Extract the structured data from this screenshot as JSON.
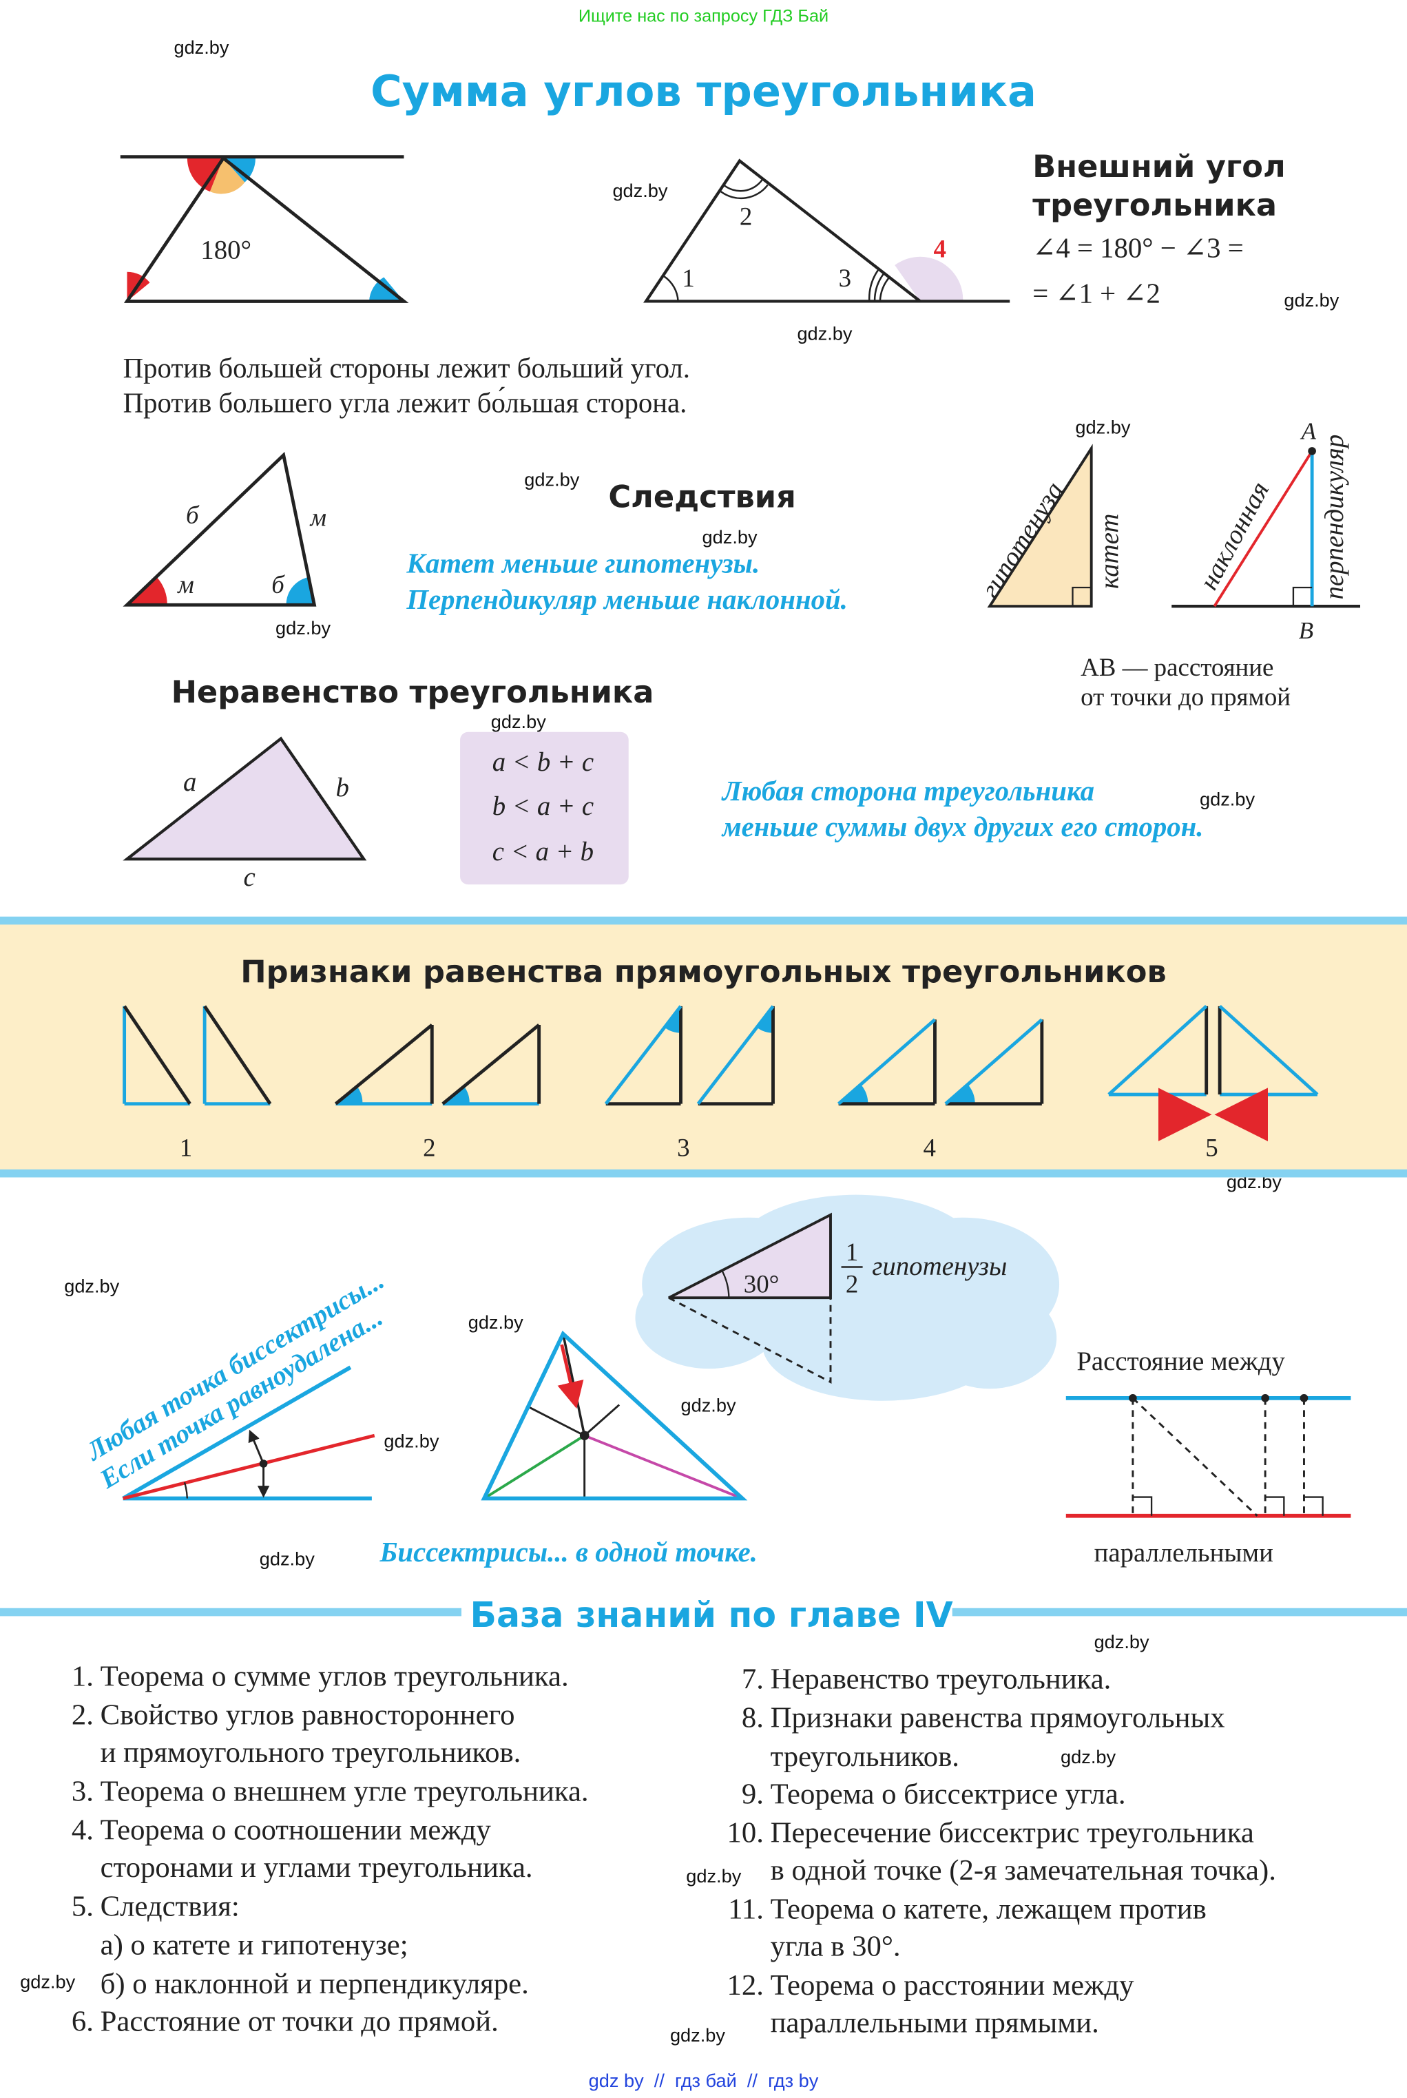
{
  "search_banner": "Ищите нас по запросу ГДЗ Бай",
  "watermark": "gdz.by",
  "footer": "gdz by  //  гдз бай  //  гдз by",
  "colors": {
    "accent_blue": "#1aa6e0",
    "red": "#e3262c",
    "band": "#fdeec8",
    "lilac": "#e8dcef",
    "cloud": "#d3eaf9"
  },
  "sum": {
    "title": "Сумма углов треугольника",
    "angle_180": "180°",
    "labels": {
      "a1": "1",
      "a2": "2",
      "a3": "3",
      "a4": "4"
    },
    "exterior_title_1": "Внешний угол",
    "exterior_title_2": "треугольника",
    "formula_1": "∠4 = 180° − ∠3 =",
    "formula_2": "= ∠1 + ∠2",
    "statement_1": "Против большей стороны лежит больший угол.",
    "statement_2": "Против большего угла лежит бо́льшая сторона."
  },
  "corollaries": {
    "title": "Следствия",
    "tri_labels": {
      "side_left": "б",
      "side_right": "м",
      "angle_left": "м",
      "angle_right": "б"
    },
    "line_1": "Катет меньше гипотенузы.",
    "line_2": "Перпендикуляр меньше наклонной.",
    "hypotenuse": "гипотенуза",
    "leg": "катет",
    "oblique": "наклонная",
    "perpendicular": "перпендикуляр",
    "point_a": "A",
    "point_b": "B",
    "distance_1": "AB — расстояние",
    "distance_2": "от точки до прямой"
  },
  "inequality": {
    "title": "Неравенство треугольника",
    "side_a": "a",
    "side_b": "b",
    "side_c": "c",
    "formulas": [
      "a < b + c",
      "b < a + c",
      "c < a + b"
    ],
    "rule_1": "Любая сторона треугольника",
    "rule_2": "меньше суммы двух других его сторон."
  },
  "right_triangles": {
    "title": "Признаки равенства прямоугольных треугольников",
    "numbers": [
      "1",
      "2",
      "3",
      "4",
      "5"
    ]
  },
  "thirty": {
    "angle": "30°",
    "num": "1",
    "den": "2",
    "text": "гипотенузы"
  },
  "bisector": {
    "line_1": "Любая точка биссектрисы...",
    "line_2": "Если точка равноудалена...",
    "caption": "Биссектрисы... в одной точке."
  },
  "parallel": {
    "top": "Расстояние между",
    "bottom": "параллельными"
  },
  "knowledge": {
    "title": "База знаний по главе IV",
    "left": [
      {
        "num": "1.",
        "lines": [
          "Теорема о сумме углов треугольника."
        ]
      },
      {
        "num": "2.",
        "lines": [
          "Свойство  углов равностороннего",
          "и прямоугольного треугольников."
        ]
      },
      {
        "num": "3.",
        "lines": [
          "Теорема о внешнем угле треугольника."
        ]
      },
      {
        "num": "4.",
        "lines": [
          "Теорема о соотношении  между",
          "сторонами и углами треугольника."
        ]
      },
      {
        "num": "5.",
        "lines": [
          "Следствия:",
          "а) о катете и гипотенузе;",
          "б) о наклонной и перпендикуляре."
        ]
      },
      {
        "num": "6.",
        "lines": [
          "Расстояние от точки до прямой."
        ]
      }
    ],
    "right": [
      {
        "num": "7.",
        "lines": [
          "Неравенство треугольника."
        ]
      },
      {
        "num": "8.",
        "lines": [
          "Признаки равенства прямоугольных",
          "треугольников."
        ]
      },
      {
        "num": "9.",
        "lines": [
          "Теорема о биссектрисе угла."
        ]
      },
      {
        "num": "10.",
        "lines": [
          "Пересечение биссектрис треугольника",
          "в одной точке (2-я замечательная точка)."
        ]
      },
      {
        "num": "11.",
        "lines": [
          "Теорема о катете, лежащем против",
          "угла в 30°."
        ]
      },
      {
        "num": "12.",
        "lines": [
          "Теорема о расстоянии между",
          "параллельными прямыми."
        ]
      }
    ]
  }
}
